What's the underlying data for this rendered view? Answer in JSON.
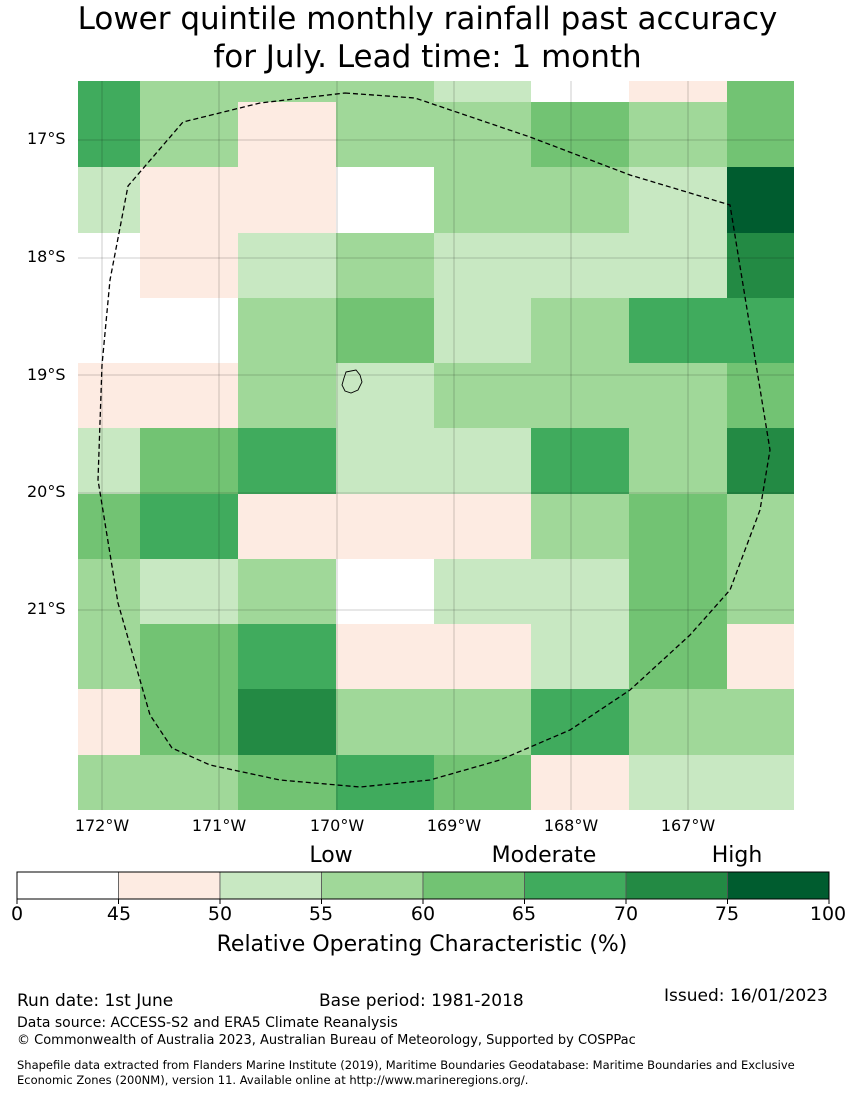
{
  "title_line1": "Lower quintile monthly rainfall past accuracy",
  "title_line2": "for July. Lead time: 1 month",
  "lat_labels": [
    "17°S",
    "18°S",
    "19°S",
    "20°S",
    "21°S"
  ],
  "lon_labels": [
    "172°W",
    "171°W",
    "170°W",
    "169°W",
    "168°W",
    "167°W"
  ],
  "category_labels": {
    "low": "Low",
    "moderate": "Moderate",
    "high": "High"
  },
  "colorbar": {
    "ticks": [
      "0",
      "45",
      "50",
      "55",
      "60",
      "65",
      "70",
      "75",
      "100"
    ],
    "colors": [
      "#ffffff",
      "#fdebe2",
      "#c8e8c2",
      "#a0d899",
      "#72c373",
      "#40ab5d",
      "#238a44",
      "#005c2f"
    ],
    "label": "Relative Operating Characteristic (%)"
  },
  "footer": {
    "run_date": "Run date: 1st June",
    "base_period": "Base period: 1981-2018",
    "issued": "Issued: 16/01/2023",
    "data_source": "Data source: ACCESS-S2 and ERA5 Climate Reanalysis",
    "copyright": "© Commonwealth of Australia 2023, Australian Bureau of Meteorology, Supported by COSPPac",
    "shapefile_line1": "Shapefile data extracted from Flanders Marine Institute (2019), Maritime Boundaries Geodatabase: Maritime Boundaries and Exclusive",
    "shapefile_line2": "Economic Zones (200NM), version 11. Available online at http://www.marineregions.org/."
  },
  "map_data": {
    "value_legend": {
      "0": "0-45",
      "1": "45-50",
      "2": "50-55",
      "3": "55-60",
      "4": "60-65",
      "5": "65-70",
      "6": "70-75",
      "7": "75-100"
    },
    "rows": [
      [
        5,
        3,
        3,
        3,
        2,
        0,
        1,
        4
      ],
      [
        5,
        3,
        1,
        3,
        3,
        4,
        3,
        4
      ],
      [
        2,
        1,
        1,
        0,
        3,
        3,
        2,
        7
      ],
      [
        0,
        1,
        2,
        3,
        2,
        2,
        2,
        6
      ],
      [
        0,
        0,
        3,
        4,
        2,
        3,
        5,
        5
      ],
      [
        1,
        1,
        3,
        2,
        3,
        3,
        3,
        4
      ],
      [
        2,
        4,
        5,
        2,
        2,
        5,
        3,
        6
      ],
      [
        4,
        5,
        1,
        1,
        1,
        3,
        4,
        3
      ],
      [
        3,
        2,
        3,
        0,
        2,
        2,
        4,
        3
      ],
      [
        3,
        4,
        5,
        1,
        1,
        2,
        4,
        1
      ],
      [
        1,
        4,
        6,
        3,
        3,
        5,
        3,
        3
      ],
      [
        3,
        3,
        4,
        5,
        4,
        1,
        2,
        2
      ]
    ]
  }
}
